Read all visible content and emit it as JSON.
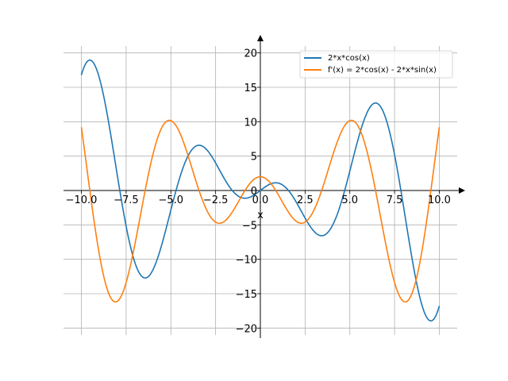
{
  "chart_data": {
    "type": "line",
    "title": "",
    "xlabel": "x",
    "ylabel": "",
    "xlim": [
      -11,
      11
    ],
    "ylim": [
      -21,
      21
    ],
    "x_ticks": [
      -10,
      -7.5,
      -5,
      -2.5,
      0,
      2.5,
      5,
      7.5,
      10
    ],
    "x_tick_labels": [
      "−10.0",
      "−7.5",
      "−5.0",
      "−2.5",
      "0.0",
      "2.5",
      "5.0",
      "7.5",
      "10.0"
    ],
    "y_ticks": [
      -20,
      -15,
      -10,
      -5,
      0,
      5,
      10,
      15,
      20
    ],
    "y_tick_labels": [
      "−20",
      "−15",
      "−10",
      "−5",
      "0",
      "5",
      "10",
      "15",
      "20"
    ],
    "grid": true,
    "legend_position": "top-right",
    "x_range": [
      -10,
      10
    ],
    "series": [
      {
        "name": "2*x*cos(x)",
        "color": "#1f77b4",
        "x": [
          -10,
          -9.5,
          -9,
          -8.5,
          -8,
          -7.5,
          -7,
          -6.5,
          -6,
          -5.5,
          -5,
          -4.5,
          -4,
          -3.5,
          -3,
          -2.5,
          -2,
          -1.5,
          -1,
          -0.5,
          0,
          0.5,
          1,
          1.5,
          2,
          2.5,
          3,
          3.5,
          4,
          4.5,
          5,
          5.5,
          6,
          6.5,
          7,
          7.5,
          8,
          8.5,
          9,
          9.5,
          10
        ],
        "y": [
          16.78,
          18.96,
          16.4,
          10.09,
          2.33,
          -5.2,
          -10.55,
          -12.5,
          -11.52,
          -7.79,
          -2.84,
          1.91,
          5.23,
          6.55,
          5.94,
          4.01,
          1.66,
          -0.21,
          -1.08,
          -0.88,
          0,
          0.88,
          1.08,
          0.21,
          -1.66,
          -4.01,
          -5.94,
          -6.55,
          -5.23,
          -1.91,
          2.84,
          7.79,
          11.52,
          12.5,
          10.55,
          5.2,
          -2.33,
          -10.09,
          -16.4,
          -18.96,
          -16.78
        ]
      },
      {
        "name": "f'(x) = 2*cos(x) - 2*x*sin(x)",
        "color": "#ff7f0e",
        "x": [
          -10,
          -9.5,
          -9,
          -8.5,
          -8,
          -7.5,
          -7,
          -6.5,
          -6,
          -5.5,
          -5,
          -4.5,
          -4,
          -3.5,
          -3,
          -2.5,
          -2,
          -1.5,
          -1,
          -0.5,
          0,
          0.5,
          1,
          1.5,
          2,
          2.5,
          3,
          3.5,
          4,
          4.5,
          5,
          5.5,
          6,
          6.5,
          7,
          7.5,
          8,
          8.5,
          9,
          9.5,
          10
        ],
        "y": [
          9.2,
          0.1,
          -9.22,
          -15.6,
          -16.12,
          -13.46,
          -7.69,
          0.95,
          5.17,
          9.48,
          10.16,
          8.6,
          4.75,
          -0.33,
          -2.83,
          -4.6,
          -4.47,
          -2.85,
          -0.6,
          1.28,
          2,
          1.28,
          -0.6,
          -2.85,
          -4.47,
          -4.6,
          -2.83,
          -0.33,
          4.75,
          8.6,
          10.16,
          9.48,
          5.17,
          0.95,
          -7.69,
          -13.46,
          -16.12,
          -15.6,
          -9.22,
          0.1,
          9.2
        ]
      }
    ]
  }
}
